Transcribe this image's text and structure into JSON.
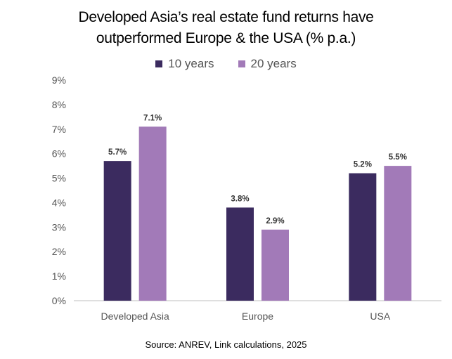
{
  "chart_data": {
    "type": "bar",
    "title_lines": [
      "Developed Asia’s real estate fund returns have",
      "outperformed Europe & the USA (% p.a.)"
    ],
    "categories": [
      "Developed Asia",
      "Europe",
      "USA"
    ],
    "series": [
      {
        "name": "10 years",
        "color": "#3b2b5f",
        "values": [
          5.7,
          3.8,
          5.2
        ],
        "labels": [
          "5.7%",
          "3.8%",
          "5.2%"
        ]
      },
      {
        "name": "20 years",
        "color": "#a27ab8",
        "values": [
          7.1,
          2.9,
          5.5
        ],
        "labels": [
          "7.1%",
          "2.9%",
          "5.5%"
        ]
      }
    ],
    "ylim": [
      0,
      9
    ],
    "yticks": [
      "0%",
      "1%",
      "2%",
      "3%",
      "4%",
      "5%",
      "6%",
      "7%",
      "8%",
      "9%"
    ],
    "xlabel": "",
    "ylabel": "",
    "grid": false,
    "legend_position": "top-center"
  },
  "source": "Source:  ANREV, Link calculations, 2025"
}
